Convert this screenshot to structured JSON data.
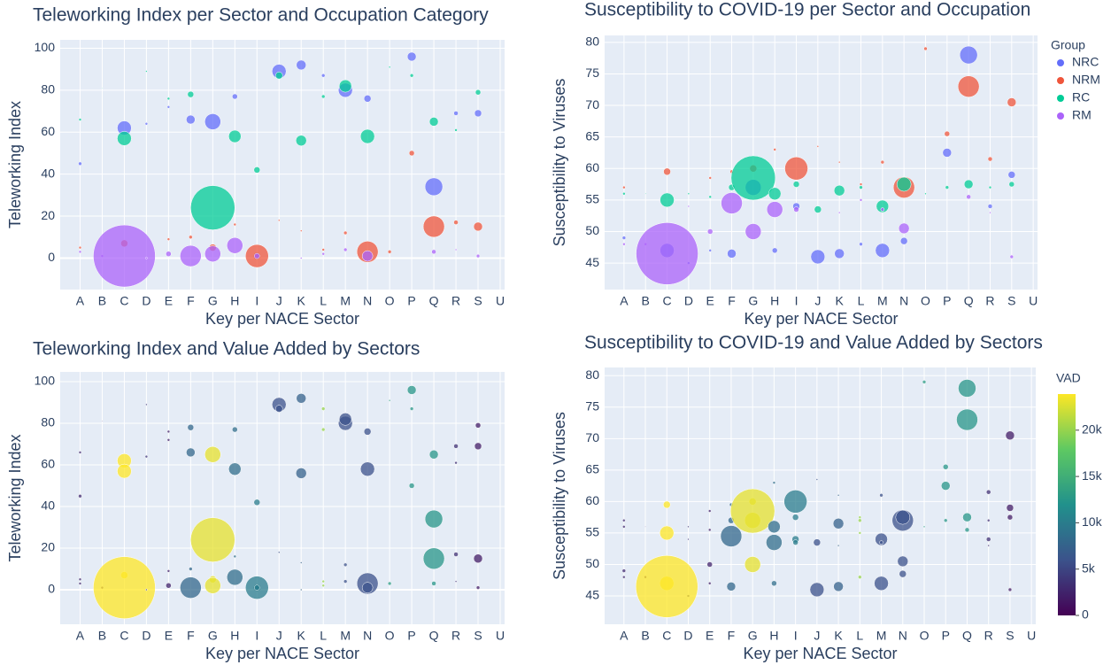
{
  "chart_data": [
    {
      "type": "bubble",
      "title": "Teleworking Index per Sector and Occupation Category",
      "x_label": "Key per NACE Sector",
      "y_label": "Teleworking Index",
      "categories": [
        "A",
        "B",
        "C",
        "D",
        "E",
        "F",
        "G",
        "H",
        "I",
        "J",
        "K",
        "L",
        "M",
        "N",
        "O",
        "P",
        "Q",
        "R",
        "S",
        "U"
      ],
      "ylim": [
        -15,
        104
      ],
      "yticks": [
        0,
        20,
        40,
        60,
        80,
        100
      ],
      "grid": true,
      "series": [
        {
          "name": "NRC",
          "color": "#636efa",
          "x": [
            "A",
            "C",
            "D",
            "E",
            "F",
            "G",
            "H",
            "I",
            "J",
            "K",
            "L",
            "M",
            "N",
            "P",
            "Q",
            "R",
            "S"
          ],
          "values": [
            45,
            62,
            64,
            72,
            66,
            65,
            77,
            1,
            89,
            92,
            87,
            80,
            76,
            96,
            34,
            69,
            69
          ],
          "sizes": [
            4,
            16,
            3,
            3,
            10,
            18,
            6,
            8,
            16,
            11,
            4,
            16,
            8,
            10,
            20,
            5,
            8
          ]
        },
        {
          "name": "NRM",
          "color": "#EF553B",
          "x": [
            "A",
            "C",
            "E",
            "F",
            "G",
            "H",
            "I",
            "J",
            "K",
            "L",
            "M",
            "N",
            "O",
            "P",
            "Q",
            "R",
            "S"
          ],
          "values": [
            5,
            7,
            9,
            10,
            5,
            16,
            1,
            18,
            13,
            4,
            12,
            3,
            3,
            50,
            15,
            17,
            15
          ],
          "sizes": [
            3,
            8,
            3,
            4,
            8,
            3,
            26,
            2,
            2,
            3,
            4,
            24,
            4,
            6,
            24,
            5,
            10
          ]
        },
        {
          "name": "RC",
          "color": "#00cc96",
          "x": [
            "A",
            "B",
            "C",
            "D",
            "E",
            "F",
            "G",
            "H",
            "I",
            "J",
            "K",
            "L",
            "M",
            "N",
            "O",
            "P",
            "Q",
            "R",
            "S"
          ],
          "values": [
            66,
            81,
            57,
            89,
            76,
            78,
            24,
            58,
            42,
            87,
            56,
            77,
            82,
            58,
            91,
            87,
            65,
            61,
            79
          ],
          "sizes": [
            3,
            1,
            16,
            2,
            3,
            7,
            50,
            14,
            7,
            8,
            12,
            4,
            14,
            16,
            2,
            4,
            10,
            3,
            6
          ]
        },
        {
          "name": "RM",
          "color": "#ab63fa",
          "x": [
            "A",
            "B",
            "C",
            "D",
            "E",
            "F",
            "G",
            "H",
            "I",
            "K",
            "L",
            "M",
            "N",
            "Q",
            "R",
            "S"
          ],
          "values": [
            3,
            1,
            1,
            0,
            2,
            1,
            2,
            6,
            1,
            0,
            2,
            4,
            1,
            3,
            4,
            1
          ],
          "sizes": [
            3,
            3,
            70,
            2,
            6,
            24,
            18,
            18,
            6,
            2,
            3,
            4,
            12,
            5,
            2,
            4
          ]
        }
      ]
    },
    {
      "type": "bubble",
      "title": "Susceptibility to COVID-19 per Sector and Occupation",
      "x_label": "Key per NACE Sector",
      "y_label": "Susceptibility to Viruses",
      "categories": [
        "A",
        "B",
        "C",
        "D",
        "E",
        "F",
        "G",
        "H",
        "I",
        "J",
        "K",
        "L",
        "M",
        "N",
        "O",
        "P",
        "Q",
        "R",
        "S",
        "U"
      ],
      "ylim": [
        40.8,
        81.1
      ],
      "yticks": [
        45,
        50,
        55,
        60,
        65,
        70,
        75,
        80
      ],
      "grid": true,
      "legend_title": "Group",
      "legend": "top-right",
      "series": [
        {
          "name": "NRC",
          "color": "#636efa",
          "x": [
            "A",
            "C",
            "D",
            "E",
            "F",
            "G",
            "H",
            "I",
            "J",
            "K",
            "L",
            "M",
            "N",
            "P",
            "Q",
            "R",
            "S"
          ],
          "values": [
            49,
            47,
            45,
            47,
            46.5,
            57,
            47,
            54,
            46,
            46.5,
            48,
            47,
            48.5,
            62.5,
            78,
            54,
            59
          ],
          "sizes": [
            4,
            16,
            3,
            3,
            10,
            18,
            6,
            8,
            16,
            11,
            4,
            16,
            8,
            10,
            20,
            5,
            8
          ]
        },
        {
          "name": "NRM",
          "color": "#EF553B",
          "x": [
            "A",
            "C",
            "E",
            "F",
            "G",
            "H",
            "I",
            "J",
            "K",
            "L",
            "M",
            "N",
            "O",
            "P",
            "Q",
            "R",
            "S"
          ],
          "values": [
            57,
            59.5,
            58.5,
            59.5,
            60,
            63,
            60,
            63.5,
            61,
            57.5,
            61,
            57,
            79,
            65.5,
            73,
            61.5,
            70.5
          ],
          "sizes": [
            3,
            8,
            3,
            4,
            8,
            3,
            26,
            2,
            2,
            3,
            4,
            24,
            4,
            6,
            24,
            5,
            10
          ]
        },
        {
          "name": "RC",
          "color": "#00cc96",
          "x": [
            "A",
            "B",
            "C",
            "D",
            "E",
            "F",
            "G",
            "H",
            "I",
            "J",
            "K",
            "L",
            "M",
            "N",
            "O",
            "P",
            "Q",
            "R",
            "S"
          ],
          "values": [
            56,
            56,
            55,
            56,
            55.5,
            57,
            58.5,
            56,
            57.5,
            53.5,
            56.5,
            57,
            54,
            57.5,
            56,
            57,
            57.5,
            57,
            57.5
          ],
          "sizes": [
            3,
            1,
            16,
            2,
            3,
            7,
            50,
            14,
            7,
            8,
            12,
            4,
            14,
            16,
            2,
            4,
            10,
            3,
            6
          ]
        },
        {
          "name": "RM",
          "color": "#ab63fa",
          "x": [
            "A",
            "B",
            "C",
            "D",
            "E",
            "F",
            "G",
            "H",
            "I",
            "K",
            "L",
            "M",
            "N",
            "Q",
            "R",
            "S"
          ],
          "values": [
            48,
            48,
            46.5,
            54,
            50,
            54.5,
            50,
            53.5,
            53.5,
            53,
            55,
            53.5,
            50.5,
            55.5,
            53,
            46
          ],
          "sizes": [
            3,
            3,
            70,
            2,
            6,
            24,
            18,
            18,
            6,
            2,
            3,
            4,
            12,
            5,
            2,
            4
          ]
        }
      ]
    },
    {
      "type": "bubble",
      "title": "Teleworking Index and Value Added by Sectors",
      "x_label": "Key per NACE Sector",
      "y_label": "Teleworking Index",
      "categories": [
        "A",
        "B",
        "C",
        "D",
        "E",
        "F",
        "G",
        "H",
        "I",
        "J",
        "K",
        "L",
        "M",
        "N",
        "O",
        "P",
        "Q",
        "R",
        "S",
        "U"
      ],
      "ylim": [
        -16.6,
        104.7
      ],
      "yticks": [
        0,
        20,
        40,
        60,
        80,
        100
      ],
      "grid": true,
      "x": [
        "A",
        "C",
        "D",
        "E",
        "F",
        "G",
        "H",
        "I",
        "J",
        "K",
        "L",
        "M",
        "N",
        "P",
        "Q",
        "R",
        "S",
        "A",
        "C",
        "E",
        "F",
        "G",
        "H",
        "I",
        "J",
        "K",
        "L",
        "M",
        "N",
        "O",
        "P",
        "Q",
        "R",
        "S",
        "A",
        "B",
        "C",
        "D",
        "E",
        "F",
        "G",
        "H",
        "I",
        "J",
        "K",
        "L",
        "M",
        "N",
        "O",
        "P",
        "Q",
        "R",
        "S",
        "A",
        "B",
        "C",
        "D",
        "E",
        "F",
        "G",
        "H",
        "I",
        "K",
        "L",
        "M",
        "N",
        "Q",
        "R",
        "S"
      ],
      "values": [
        45,
        62,
        64,
        72,
        66,
        65,
        77,
        1,
        89,
        92,
        87,
        80,
        76,
        96,
        34,
        69,
        69,
        5,
        7,
        9,
        10,
        5,
        16,
        1,
        18,
        13,
        4,
        12,
        3,
        3,
        50,
        15,
        17,
        15,
        66,
        81,
        57,
        89,
        76,
        78,
        24,
        58,
        42,
        87,
        56,
        77,
        82,
        58,
        91,
        87,
        65,
        61,
        79,
        3,
        1,
        1,
        0,
        2,
        1,
        2,
        6,
        1,
        0,
        2,
        4,
        1,
        3,
        4,
        1
      ],
      "sizes": [
        4,
        16,
        3,
        3,
        10,
        18,
        6,
        8,
        16,
        11,
        4,
        16,
        8,
        10,
        20,
        5,
        8,
        3,
        8,
        3,
        4,
        8,
        3,
        26,
        2,
        2,
        3,
        4,
        24,
        4,
        6,
        24,
        5,
        10,
        3,
        1,
        16,
        2,
        3,
        7,
        50,
        14,
        7,
        8,
        12,
        4,
        14,
        16,
        2,
        4,
        10,
        3,
        6,
        3,
        3,
        70,
        2,
        6,
        24,
        18,
        18,
        6,
        2,
        3,
        4,
        12,
        5,
        2,
        4
      ],
      "color_values": [
        3000,
        24000,
        4000,
        2500,
        8000,
        23000,
        8500,
        10000,
        6000,
        7500,
        20000,
        6000,
        6000,
        12500,
        12500,
        3500,
        2000,
        3000,
        24000,
        2500,
        8000,
        23000,
        8500,
        10000,
        6000,
        7500,
        20000,
        6000,
        6000,
        13000,
        12500,
        12500,
        3500,
        2000,
        3000,
        1500,
        24000,
        4000,
        2500,
        8000,
        23000,
        8500,
        10000,
        6000,
        7500,
        20000,
        6000,
        6000,
        13000,
        12500,
        12500,
        3500,
        2000,
        3000,
        1500,
        24000,
        4000,
        2500,
        8000,
        23000,
        8500,
        10000,
        7500,
        20000,
        6000,
        6000,
        12500,
        3500,
        2000
      ],
      "clim": [
        0,
        23900
      ]
    },
    {
      "type": "bubble",
      "title": "Susceptibility to COVID-19 and Value Added by Sectors",
      "x_label": "Key per NACE Sector",
      "y_label": "Susceptibility to Viruses",
      "categories": [
        "A",
        "B",
        "C",
        "D",
        "E",
        "F",
        "G",
        "H",
        "I",
        "J",
        "K",
        "L",
        "M",
        "N",
        "O",
        "P",
        "Q",
        "R",
        "S",
        "U"
      ],
      "ylim": [
        40.5,
        81.3
      ],
      "yticks": [
        45,
        50,
        55,
        60,
        65,
        70,
        75,
        80
      ],
      "grid": true,
      "x": [
        "A",
        "C",
        "D",
        "E",
        "F",
        "G",
        "H",
        "I",
        "J",
        "K",
        "L",
        "M",
        "N",
        "P",
        "Q",
        "R",
        "S",
        "A",
        "C",
        "E",
        "F",
        "G",
        "H",
        "I",
        "J",
        "K",
        "L",
        "M",
        "N",
        "O",
        "P",
        "Q",
        "R",
        "S",
        "A",
        "B",
        "C",
        "D",
        "E",
        "F",
        "G",
        "H",
        "I",
        "J",
        "K",
        "L",
        "M",
        "N",
        "O",
        "P",
        "Q",
        "R",
        "S",
        "A",
        "B",
        "C",
        "D",
        "E",
        "F",
        "G",
        "H",
        "I",
        "K",
        "L",
        "M",
        "N",
        "Q",
        "R",
        "S"
      ],
      "values": [
        49,
        47,
        45,
        47,
        46.5,
        57,
        47,
        54,
        46,
        46.5,
        48,
        47,
        48.5,
        62.5,
        78,
        54,
        59,
        57,
        59.5,
        58.5,
        59.5,
        60,
        63,
        60,
        63.5,
        61,
        57.5,
        61,
        57,
        79,
        65.5,
        73,
        61.5,
        70.5,
        56,
        56,
        55,
        56,
        55.5,
        57,
        58.5,
        56,
        57.5,
        53.5,
        56.5,
        57,
        54,
        57.5,
        56,
        57,
        57.5,
        57,
        57.5,
        48,
        48,
        46.5,
        54,
        50,
        54.5,
        50,
        53.5,
        53.5,
        53,
        55,
        53.5,
        50.5,
        55.5,
        53,
        46
      ],
      "sizes": [
        4,
        16,
        3,
        3,
        10,
        18,
        6,
        8,
        16,
        11,
        4,
        16,
        8,
        10,
        20,
        5,
        8,
        3,
        8,
        3,
        4,
        8,
        3,
        26,
        2,
        2,
        3,
        4,
        24,
        4,
        6,
        24,
        5,
        10,
        3,
        1,
        16,
        2,
        3,
        7,
        50,
        14,
        7,
        8,
        12,
        4,
        14,
        16,
        2,
        4,
        10,
        3,
        6,
        3,
        3,
        70,
        2,
        6,
        24,
        18,
        18,
        6,
        2,
        3,
        4,
        12,
        5,
        2,
        4
      ],
      "color_values": [
        3000,
        24000,
        4000,
        2500,
        8000,
        23000,
        8500,
        10000,
        6000,
        7500,
        20000,
        6000,
        6000,
        12500,
        12500,
        3500,
        2000,
        3000,
        24000,
        2500,
        8000,
        23000,
        8500,
        10000,
        6000,
        7500,
        20000,
        6000,
        6000,
        13000,
        12500,
        12500,
        3500,
        2000,
        3000,
        1500,
        24000,
        4000,
        2500,
        8000,
        23000,
        8500,
        10000,
        6000,
        7500,
        20000,
        6000,
        6000,
        13000,
        12500,
        12500,
        3500,
        2000,
        3000,
        1500,
        24000,
        4000,
        2500,
        8000,
        23000,
        8500,
        10000,
        7500,
        20000,
        6000,
        6000,
        12500,
        3500,
        2000
      ],
      "clim": [
        0,
        23900
      ],
      "colorbar": {
        "title": "VAD",
        "ticks": [
          0,
          {
            "value": 5000,
            "label": "5k"
          },
          {
            "value": 10000,
            "label": "10k"
          },
          {
            "value": 15000,
            "label": "15k"
          },
          {
            "value": 20000,
            "label": "20k"
          }
        ]
      }
    }
  ]
}
